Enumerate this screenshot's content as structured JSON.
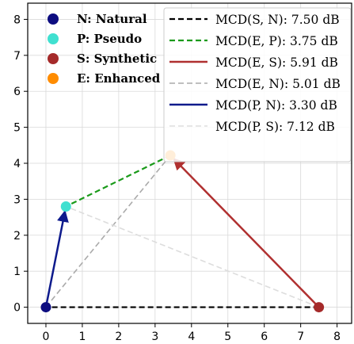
{
  "chart_data": {
    "type": "scatter",
    "title": "",
    "xlabel": "",
    "ylabel": "",
    "xlim": [
      -0.5,
      8.4
    ],
    "ylim": [
      -0.45,
      8.45
    ],
    "xticks": [
      0,
      1,
      2,
      3,
      4,
      5,
      6,
      7,
      8
    ],
    "yticks": [
      0,
      1,
      2,
      3,
      4,
      5,
      6,
      7,
      8
    ],
    "grid": true,
    "points": [
      {
        "id": "N",
        "name": "N: Natural",
        "x": 0.0,
        "y": 0.0,
        "color": "#0d0d80"
      },
      {
        "id": "P",
        "name": "P: Pseudo",
        "x": 0.55,
        "y": 2.8,
        "color": "#40e0d0"
      },
      {
        "id": "S",
        "name": "S: Synthetic",
        "x": 7.5,
        "y": 0.0,
        "color": "#a52a2a"
      },
      {
        "id": "E",
        "name": "E: Enhanced",
        "x": 3.42,
        "y": 4.22,
        "color": "#ff8c00"
      }
    ],
    "connections": [
      {
        "from": "S",
        "to": "N",
        "label": "MCD(S, N): 7.50 dB",
        "color": "#000000",
        "style": "dashed",
        "arrow": false,
        "width": 2.2
      },
      {
        "from": "E",
        "to": "P",
        "label": "MCD(E, P): 3.75 dB",
        "color": "#1a9a1a",
        "style": "dashed",
        "arrow": false,
        "width": 2.2
      },
      {
        "from": "S",
        "to": "E",
        "label": "MCD(E, S): 5.91 dB",
        "color": "#b03030",
        "style": "solid",
        "arrow": true,
        "width": 2.5
      },
      {
        "from": "N",
        "to": "E",
        "label": "MCD(E, N): 5.01 dB",
        "color": "#aaaaaa",
        "style": "dashed",
        "arrow": false,
        "width": 1.6
      },
      {
        "from": "N",
        "to": "P",
        "label": "MCD(P, N): 3.30 dB",
        "color": "#0d1a8c",
        "style": "solid",
        "arrow": true,
        "width": 2.5
      },
      {
        "from": "S",
        "to": "P",
        "label": "MCD(P, S): 7.12 dB",
        "color": "#dddddd",
        "style": "dashed",
        "arrow": false,
        "width": 1.6
      }
    ],
    "legend_position": "top"
  }
}
